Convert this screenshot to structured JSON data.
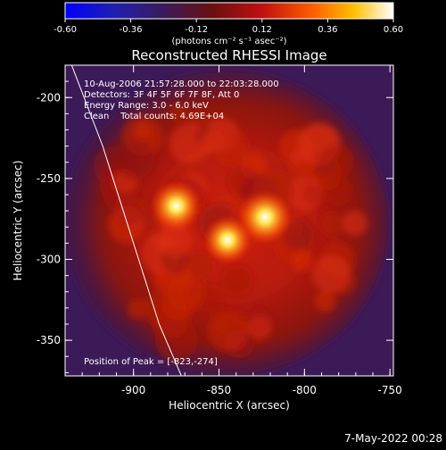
{
  "colorbar": {
    "ticks": [
      "-0.60",
      "-0.36",
      "-0.12",
      "0.12",
      "0.36",
      "0.60"
    ],
    "unit": "(photons cm⁻² s⁻¹ asec⁻²)"
  },
  "chart_data": {
    "type": "heatmap",
    "title": "Reconstructed RHESSI Image",
    "xlabel": "Heliocentric X (arcsec)",
    "ylabel": "Heliocentric Y (arcsec)",
    "xlim": [
      -940,
      -748
    ],
    "ylim": [
      -372,
      -180
    ],
    "zlim": [
      -0.6,
      0.6
    ],
    "x_ticks": [
      "-900",
      "-850",
      "-800",
      "-750"
    ],
    "y_ticks": [
      "-200",
      "-250",
      "-300",
      "-350"
    ],
    "info_lines": [
      "10-Aug-2006 21:57:28.000 to 22:03:28.000",
      "Detectors: 3F 4F 5F 6F 7F 8F, Att 0",
      "Energy Range: 3.0 - 6.0 keV",
      "Clean    Total counts: 4.69E+04"
    ],
    "peak_label": "Position of Peak = [-823,-274]",
    "peak": [
      -823,
      -274
    ],
    "sources": [
      {
        "x": -823,
        "y": -274,
        "intensity": 0.6
      },
      {
        "x": -875,
        "y": -267,
        "intensity": 0.52
      },
      {
        "x": -845,
        "y": -288,
        "intensity": 0.48
      }
    ],
    "limb_curve": [
      [
        -938,
        -175
      ],
      [
        -918,
        -230
      ],
      [
        -900,
        -290
      ],
      [
        -885,
        -340
      ],
      [
        -872,
        -372
      ]
    ]
  },
  "footer": {
    "timestamp": "7-May-2022 00:28"
  }
}
